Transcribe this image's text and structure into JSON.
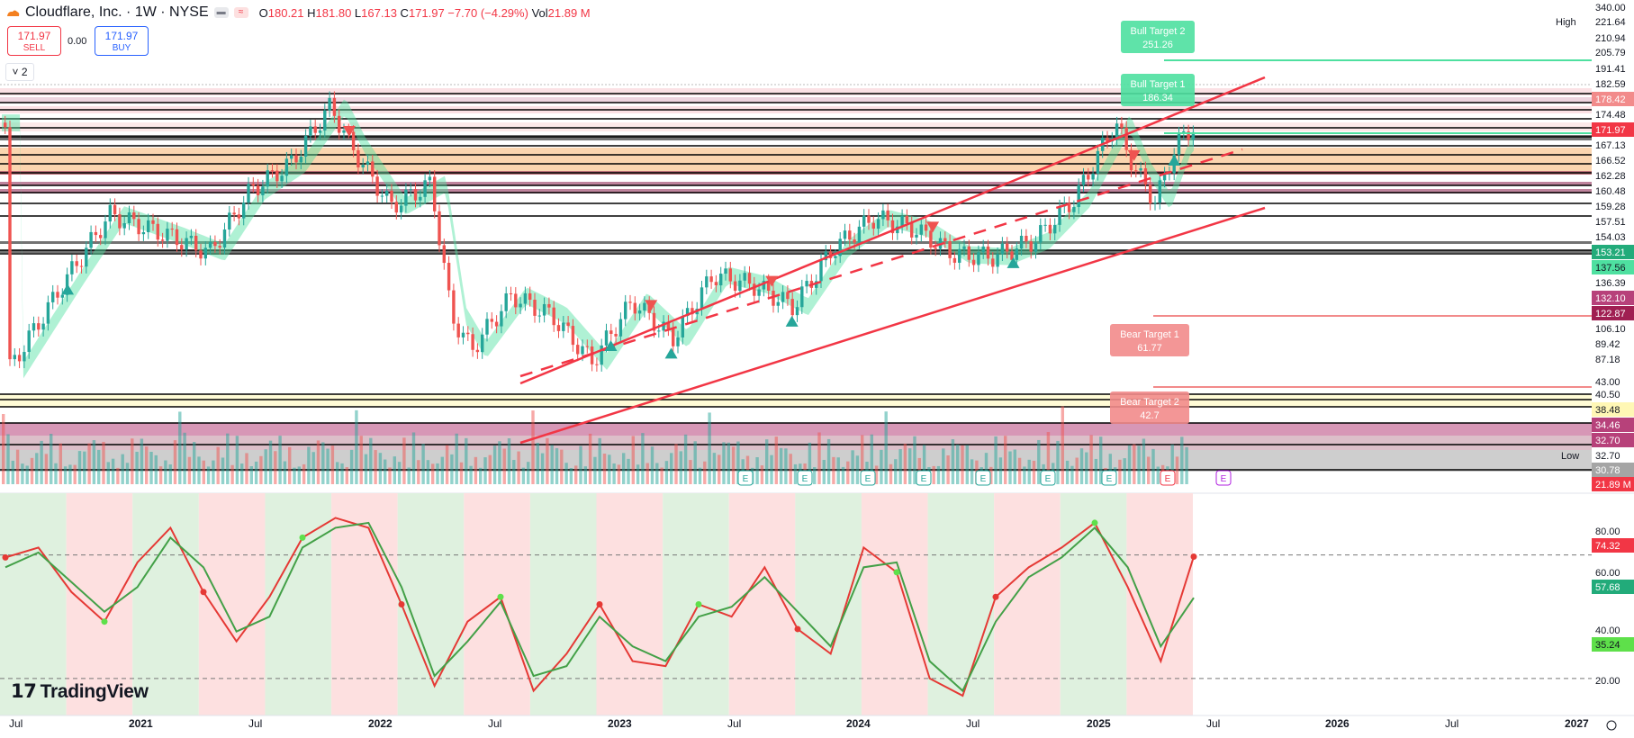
{
  "header": {
    "symbol": "Cloudflare, Inc. · 1W · NYSE",
    "open_label": "O",
    "open": "180.21",
    "high_label": "H",
    "high": "181.80",
    "low_label": "L",
    "low": "167.13",
    "close_label": "C",
    "close": "171.97 −7.70 (−4.29%)",
    "vol_label": "Vol",
    "vol": "21.89 M"
  },
  "trade": {
    "sell_price": "171.97",
    "sell_label": "SELL",
    "buy_price": "171.97",
    "buy_label": "BUY",
    "spread": "0.00"
  },
  "collapse_label": "2",
  "logo": "TradingView",
  "colors": {
    "up": "#26a69a",
    "down": "#ef5350",
    "channel": "#f23645",
    "bull_zone": "#4ee0a0",
    "bear_zone": "#f28b8b",
    "stoch_k": "#e53935",
    "stoch_d": "#43a047"
  },
  "chart_data": [
    {
      "type": "candlestick",
      "title": "Cloudflare, Inc. · 1W · NYSE",
      "x_ticks": [
        "Jul",
        "2021",
        "Jul",
        "2022",
        "Jul",
        "2023",
        "Jul",
        "2024",
        "Jul",
        "2025",
        "Jul",
        "2026",
        "Jul",
        "2027"
      ],
      "y_scale": "log",
      "y_axis_labels": [
        "340.00",
        "221.64",
        "210.94",
        "205.79",
        "191.41",
        "182.59",
        "178.42",
        "174.48",
        "171.97",
        "167.13",
        "166.52",
        "162.28",
        "160.48",
        "159.28",
        "157.51",
        "154.03",
        "153.21",
        "137.56",
        "136.39",
        "132.10",
        "122.87",
        "106.10",
        "89.42",
        "87.18",
        "43.00",
        "40.50",
        "38.48",
        "34.46",
        "32.70",
        "32.70",
        "30.78",
        "21.89 M"
      ],
      "price_path": [
        [
          "2020-07",
          40
        ],
        [
          "2020-10",
          70
        ],
        [
          "2020-12",
          100
        ],
        [
          "2021-03",
          88
        ],
        [
          "2021-05",
          80
        ],
        [
          "2021-07",
          115
        ],
        [
          "2021-09",
          135
        ],
        [
          "2021-11",
          190
        ],
        [
          "2021-12",
          150
        ],
        [
          "2022-02",
          105
        ],
        [
          "2022-04",
          120
        ],
        [
          "2022-05",
          55
        ],
        [
          "2022-06",
          45
        ],
        [
          "2022-08",
          62
        ],
        [
          "2022-10",
          55
        ],
        [
          "2022-12",
          42
        ],
        [
          "2023-02",
          60
        ],
        [
          "2023-04",
          48
        ],
        [
          "2023-06",
          70
        ],
        [
          "2023-08",
          66
        ],
        [
          "2023-10",
          58
        ],
        [
          "2023-12",
          82
        ],
        [
          "2024-02",
          98
        ],
        [
          "2024-04",
          92
        ],
        [
          "2024-06",
          79
        ],
        [
          "2024-08",
          78
        ],
        [
          "2024-10",
          86
        ],
        [
          "2024-12",
          110
        ],
        [
          "2025-02",
          172
        ],
        [
          "2025-03",
          130
        ],
        [
          "2025-04",
          108
        ],
        [
          "2025-05",
          150
        ],
        [
          "2025-06",
          171.97
        ]
      ],
      "markers": {
        "buy": [
          "2020-10",
          "2023-01",
          "2023-04",
          "2023-10",
          "2024-09",
          "2025-05"
        ],
        "sell": [
          "2021-12",
          "2023-03",
          "2023-09",
          "2024-05",
          "2025-03"
        ]
      },
      "targets": [
        {
          "label": "Bull Target 2",
          "value": "251.26"
        },
        {
          "label": "Bull Target 1",
          "value": "186.34"
        },
        {
          "label": "Bear Target 1",
          "value": "61.77"
        },
        {
          "label": "Bear Target 2",
          "value": "42.7"
        }
      ],
      "range_labels": {
        "high": "High",
        "low": "Low"
      },
      "earnings_label": "E"
    },
    {
      "type": "line",
      "title": "",
      "y_axis_labels": [
        "80.00",
        "74.32",
        "60.00",
        "57.68",
        "40.00",
        "35.24",
        "20.00"
      ],
      "series": [
        {
          "values": [
            74,
            78,
            60,
            48,
            72,
            86,
            60,
            40,
            58,
            82,
            90,
            86,
            55,
            22,
            48,
            58,
            20,
            35,
            55,
            32,
            30,
            55,
            50,
            70,
            45,
            35,
            78,
            68,
            25,
            18,
            58,
            70,
            78,
            88,
            62,
            32,
            74.32
          ]
        },
        {
          "values": [
            70,
            76,
            64,
            52,
            62,
            82,
            70,
            44,
            50,
            78,
            86,
            88,
            62,
            26,
            40,
            56,
            26,
            30,
            50,
            38,
            32,
            50,
            54,
            66,
            52,
            38,
            70,
            72,
            32,
            20,
            48,
            66,
            74,
            86,
            70,
            38,
            57.68
          ]
        }
      ],
      "reference_lines": [
        75,
        25
      ],
      "ylim": [
        10,
        100
      ]
    }
  ]
}
